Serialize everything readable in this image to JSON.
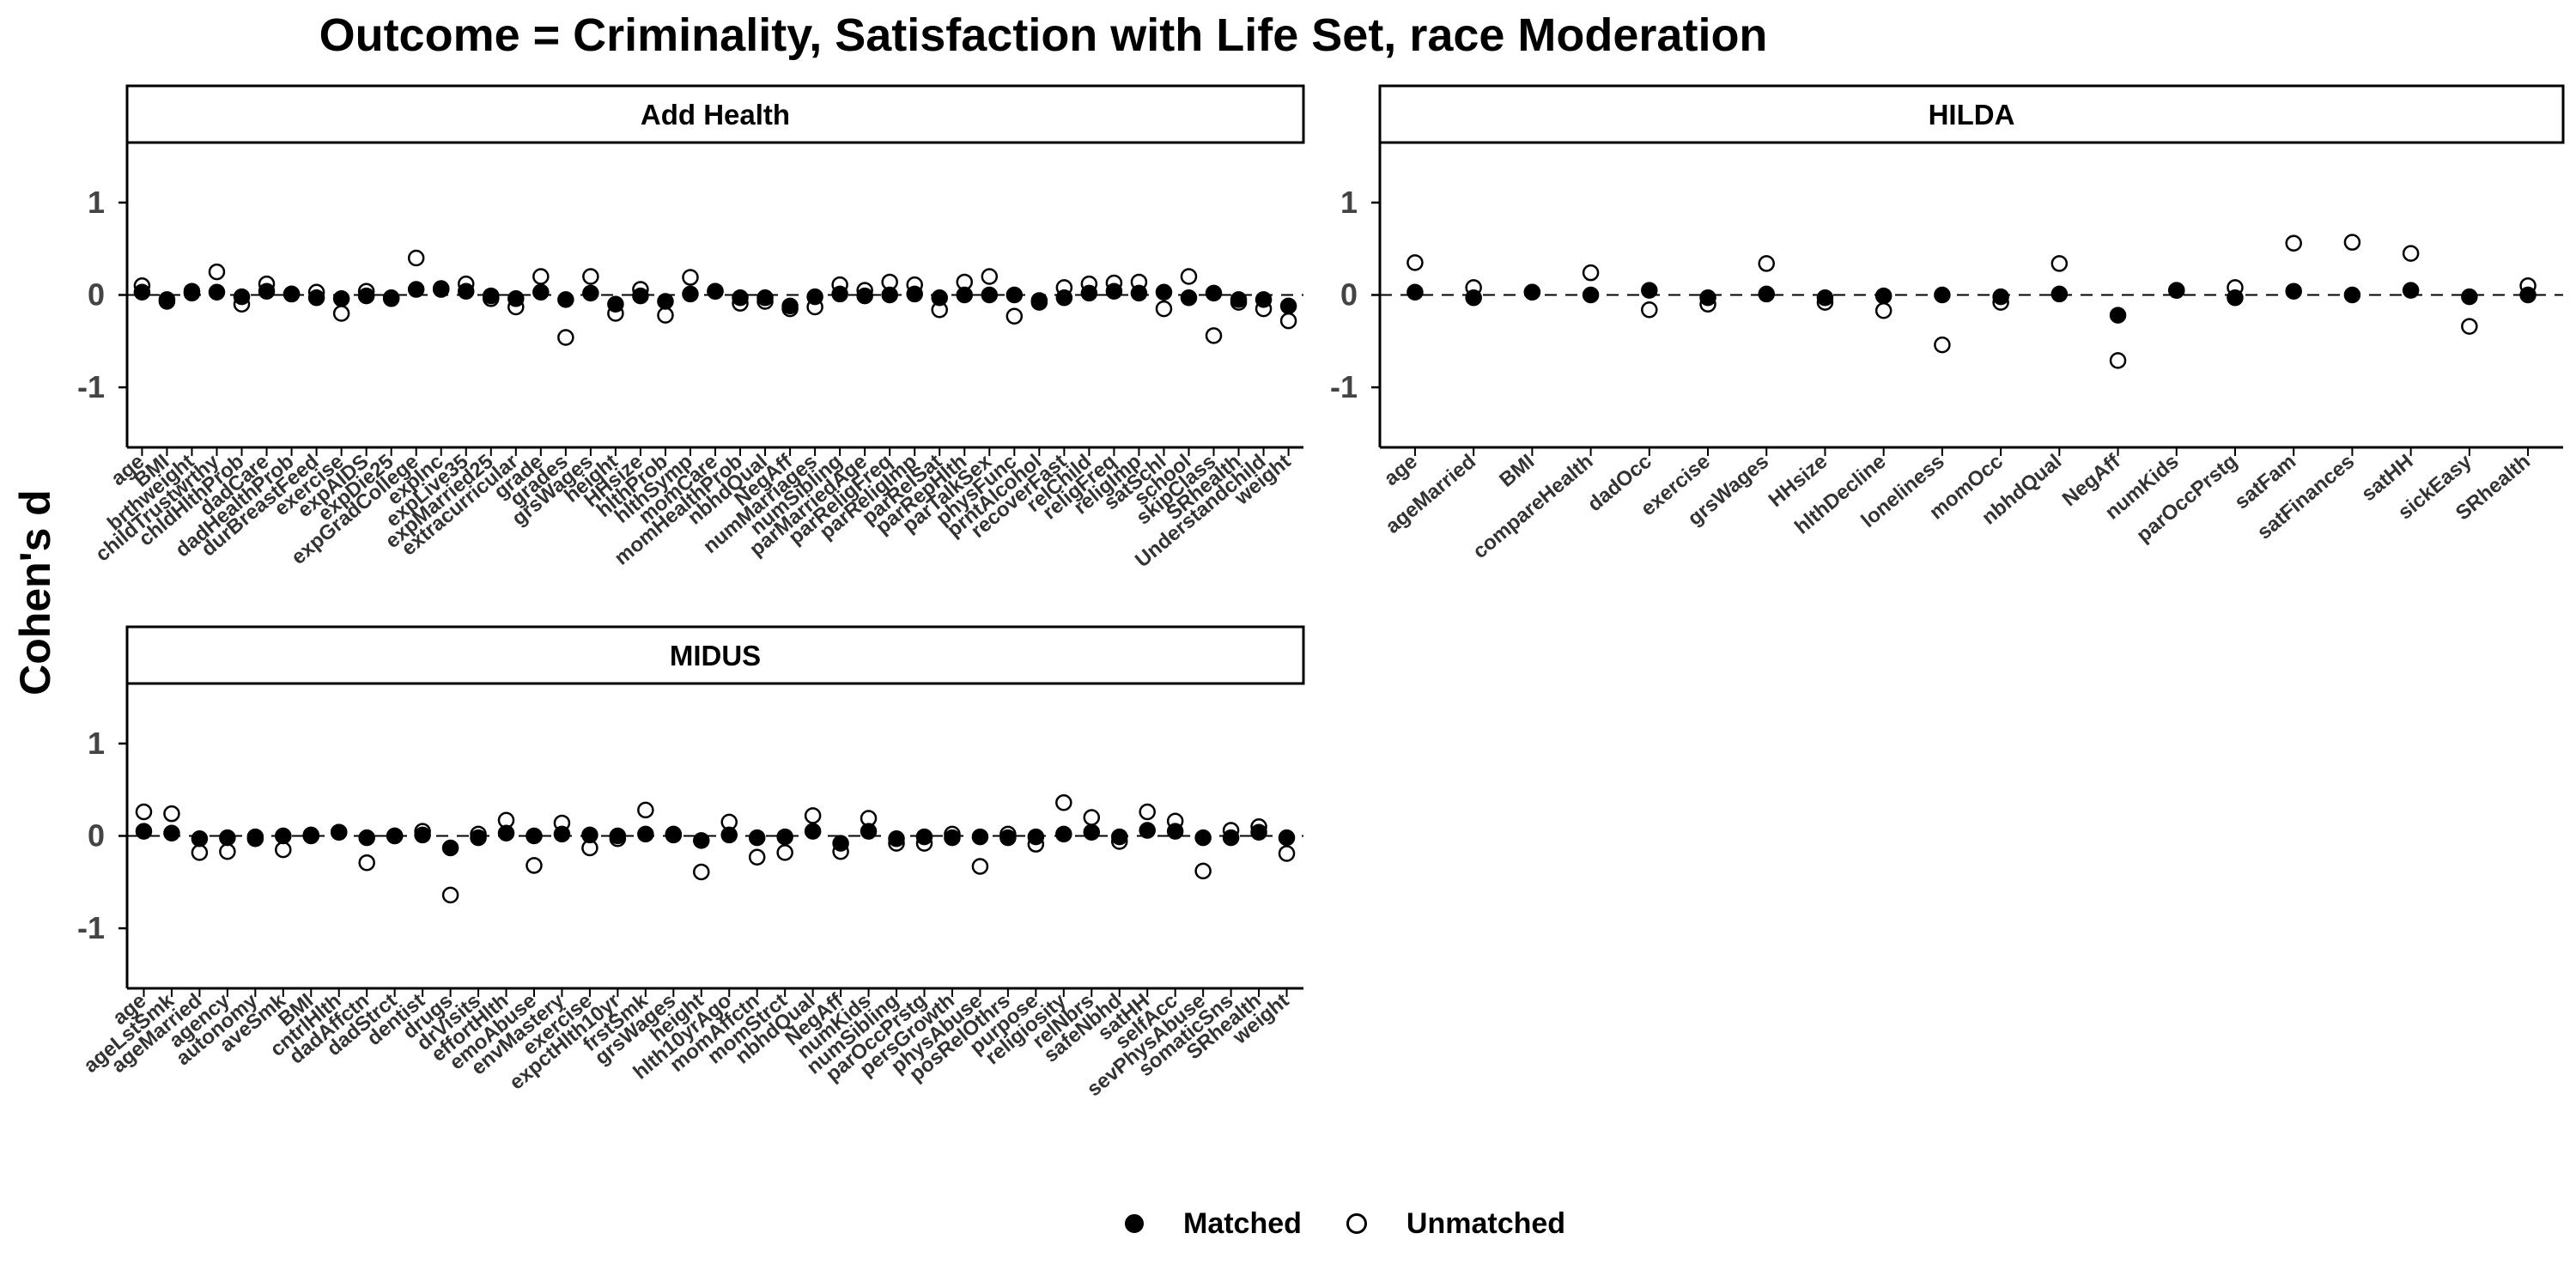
{
  "chart_data": {
    "type": "scatter",
    "title": "Outcome = Criminality, Satisfaction with Life Set, race Moderation",
    "ylabel": "Cohen's d",
    "ylim": [
      -1.65,
      1.65
    ],
    "yticks": [
      -1,
      0,
      1
    ],
    "reference_line": 0,
    "grid": false,
    "legend_position": "bottom",
    "series_names": [
      "Matched",
      "Unmatched"
    ],
    "colors": {
      "matched_fill": "#000000",
      "unmatched_fill": "#ffffff",
      "stroke": "#000000"
    },
    "panels": [
      {
        "name": "Add Health",
        "categories": [
          "age",
          "BMI",
          "brthweight",
          "childTrustwrthy",
          "chldHlthProb",
          "dadCare",
          "dadHealthProb",
          "durBreastFeed",
          "exercise",
          "expAIDS",
          "expDie25",
          "expGradCollege",
          "expInc",
          "expLive35",
          "expMarried25",
          "extracurricular",
          "grade",
          "grades",
          "grsWages",
          "height",
          "HHsize",
          "hlthProb",
          "hlthSymp",
          "momCare",
          "momHealthProb",
          "nbhdQual",
          "NegAff",
          "numMarriages",
          "numSibling",
          "parMarriedAge",
          "parReligFreq",
          "parReligImp",
          "parRelSat",
          "parRepHlth",
          "parTalkSex",
          "physFunc",
          "prntAlcohol",
          "recoverFast",
          "relChild",
          "religFreq",
          "religImp",
          "satSchl",
          "school",
          "skipClass",
          "SRhealth",
          "Understandchild",
          "weight"
        ],
        "matched": [
          0.03,
          -0.05,
          0.02,
          0.03,
          -0.02,
          0.04,
          0.01,
          -0.03,
          -0.04,
          -0.01,
          -0.03,
          0.06,
          0.06,
          0.04,
          -0.01,
          -0.04,
          0.03,
          -0.05,
          0.02,
          -0.1,
          -0.01,
          -0.07,
          0.01,
          0.04,
          -0.03,
          -0.03,
          -0.12,
          -0.02,
          0.01,
          -0.01,
          0.0,
          0.01,
          -0.03,
          0.0,
          0.0,
          0.0,
          -0.08,
          -0.03,
          0.02,
          0.04,
          0.02,
          0.03,
          -0.03,
          0.02,
          -0.05,
          -0.05,
          -0.12
        ],
        "unmatched": [
          0.1,
          -0.07,
          0.04,
          0.25,
          -0.1,
          0.12,
          0.01,
          0.03,
          -0.2,
          0.04,
          -0.04,
          0.4,
          0.07,
          0.12,
          -0.04,
          -0.13,
          0.2,
          -0.46,
          0.2,
          -0.2,
          0.06,
          -0.22,
          0.19,
          0.04,
          -0.09,
          -0.07,
          -0.15,
          -0.13,
          0.11,
          0.05,
          0.14,
          0.11,
          -0.16,
          0.14,
          0.2,
          -0.23,
          -0.06,
          0.08,
          0.12,
          0.13,
          0.14,
          -0.15,
          0.2,
          -0.44,
          -0.08,
          -0.15,
          -0.28
        ]
      },
      {
        "name": "HILDA",
        "categories": [
          "age",
          "ageMarried",
          "BMI",
          "compareHealth",
          "dadOcc",
          "exercise",
          "grsWages",
          "HHsize",
          "hlthDecline",
          "loneliness",
          "momOcc",
          "nbhdQual",
          "NegAff",
          "numKids",
          "parOccPrstg",
          "satFam",
          "satFinances",
          "satHH",
          "sickEasy",
          "SRhealth"
        ],
        "matched": [
          0.03,
          -0.03,
          0.03,
          0.0,
          0.05,
          -0.03,
          0.01,
          -0.03,
          -0.01,
          0.0,
          -0.02,
          0.01,
          -0.22,
          0.05,
          -0.03,
          0.04,
          0.0,
          0.05,
          -0.02,
          0.0
        ],
        "unmatched": [
          0.35,
          0.08,
          0.03,
          0.24,
          -0.16,
          -0.1,
          0.34,
          -0.08,
          -0.17,
          -0.54,
          -0.08,
          0.34,
          -0.71,
          0.05,
          0.08,
          0.56,
          0.57,
          0.45,
          -0.34,
          0.1
        ]
      },
      {
        "name": "MIDUS",
        "categories": [
          "age",
          "ageLstSmk",
          "ageMarried",
          "agency",
          "autonomy",
          "aveSmk",
          "BMI",
          "cntrlHlth",
          "dadAffctn",
          "dadStrct",
          "dentist",
          "drugs",
          "drVisits",
          "effortHlth",
          "emoAbuse",
          "envMastery",
          "exercise",
          "expctHlth10yr",
          "frstSmk",
          "grsWages",
          "height",
          "hlth10yrAgo",
          "momAffctn",
          "momStrct",
          "nbhdQual",
          "NegAff",
          "numKids",
          "numSibling",
          "parOccPrstg",
          "persGrowth",
          "physAbuse",
          "posRelOthrs",
          "purpose",
          "religiosity",
          "relNbrs",
          "safeNbhd",
          "satHH",
          "selfAcc",
          "sevPhysAbuse",
          "somaticSns",
          "SRhealth",
          "weight"
        ],
        "matched": [
          0.05,
          0.03,
          -0.03,
          -0.02,
          -0.01,
          0.0,
          0.01,
          0.04,
          -0.02,
          0.0,
          0.01,
          -0.13,
          -0.02,
          0.03,
          0.0,
          0.02,
          0.01,
          0.0,
          0.02,
          0.01,
          -0.05,
          0.01,
          -0.02,
          -0.01,
          0.05,
          -0.08,
          0.05,
          -0.03,
          -0.01,
          -0.02,
          -0.01,
          -0.02,
          -0.01,
          0.02,
          0.04,
          -0.01,
          0.06,
          0.05,
          -0.02,
          -0.02,
          0.04,
          -0.02
        ],
        "unmatched": [
          0.26,
          0.24,
          -0.18,
          -0.17,
          -0.03,
          -0.15,
          0.0,
          0.04,
          -0.29,
          0.0,
          0.05,
          -0.64,
          0.02,
          0.17,
          -0.32,
          0.14,
          -0.13,
          -0.03,
          0.28,
          0.02,
          -0.39,
          0.15,
          -0.23,
          -0.18,
          0.22,
          -0.17,
          0.19,
          -0.08,
          -0.08,
          0.02,
          -0.33,
          0.02,
          -0.09,
          0.36,
          0.2,
          -0.06,
          0.26,
          0.16,
          -0.38,
          0.06,
          0.1,
          -0.19
        ]
      }
    ]
  }
}
